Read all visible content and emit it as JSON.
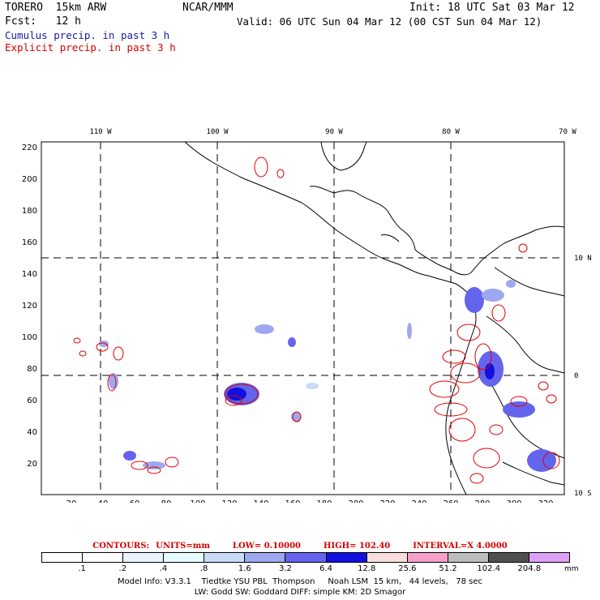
{
  "header": {
    "model": "TORERO  15km ARW",
    "org": "NCAR/MMM",
    "init": "Init: 18 UTC Sat 03 Mar 12",
    "fcst": "Fcst:   12 h",
    "valid": "Valid: 06 UTC Sun 04 Mar 12 (00 CST Sun 04 Mar 12)",
    "field1": "Cumulus precip. in past 3 h",
    "field2": "Explicit precip. in past 3 h",
    "field1_color": "#1a1aa0",
    "field2_color": "#d40000"
  },
  "map": {
    "lon_labels": [
      "110 W",
      "100 W",
      "90 W",
      "80 W",
      "70 W"
    ],
    "lat_labels": [
      "10 N",
      "0",
      "10 S"
    ],
    "y_ticks": [
      "220",
      "200",
      "180",
      "160",
      "140",
      "120",
      "100",
      "80",
      "60",
      "40",
      "20"
    ],
    "x_ticks": [
      "20",
      "40",
      "60",
      "80",
      "100",
      "120",
      "140",
      "160",
      "180",
      "200",
      "220",
      "240",
      "260",
      "280",
      "300",
      "320"
    ]
  },
  "contours": {
    "label": "CONTOURS:",
    "units": "UNITS=mm",
    "low": "LOW= 0.10000",
    "high": "HIGH=  102.40",
    "interval": "INTERVAL=X  4.0000"
  },
  "colorbar": {
    "colors": [
      "#ffffff",
      "#ffffff",
      "#e8f4ff",
      "#e6fcfc",
      "#c8dcf8",
      "#9ea8f0",
      "#6464ec",
      "#1010e0",
      "#fadede",
      "#f5a0c8",
      "#bdbdbd",
      "#505050",
      "#dca0f5"
    ],
    "labels": [
      ".1",
      ".2",
      ".4",
      ".8",
      "1.6",
      "3.2",
      "6.4",
      "12.8",
      "25.6",
      "51.2",
      "102.4",
      "204.8"
    ],
    "units": "mm"
  },
  "footer": {
    "line1": "Model Info: V3.3.1    Tiedtke YSU PBL  Thompson     Noah LSM  15 km,   44 levels,   78 sec",
    "line2": "LW: Godd SW: Goddard DIFF: simple KM: 2D Smagor"
  }
}
